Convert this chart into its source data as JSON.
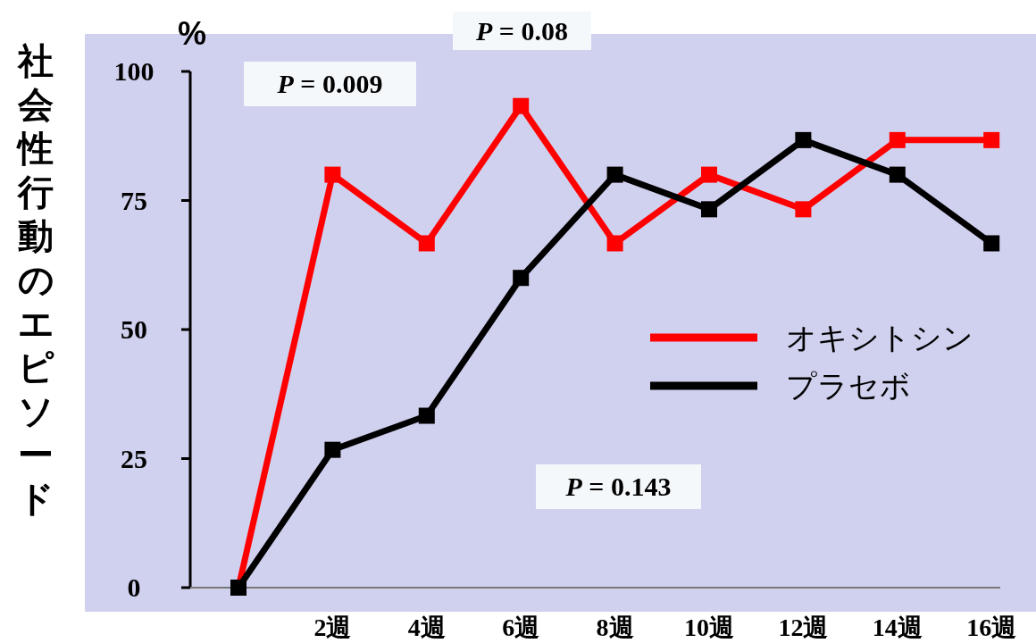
{
  "chart_data": {
    "type": "line",
    "ylabel": "社会性行動のエピソード",
    "categories": [
      null,
      "2週",
      "4週",
      "6週",
      "8週",
      "10週",
      "12週",
      "14週",
      "16週"
    ],
    "series": [
      {
        "name": "オキシトシン",
        "color": "#ff0000",
        "values": [
          0,
          80,
          66.7,
          93.3,
          66.7,
          80,
          73.3,
          86.7,
          86.7
        ]
      },
      {
        "name": "プラセボ",
        "color": "#000000",
        "values": [
          0,
          26.7,
          33.3,
          60,
          80,
          73.3,
          86.7,
          80,
          66.7
        ]
      }
    ],
    "ylim": [
      0,
      100
    ],
    "yticks": [
      0,
      25,
      50,
      75,
      100
    ],
    "marker": "square",
    "line_style": "solid",
    "legend": "right",
    "grid": false,
    "annotations": [
      "%",
      "P =  0.009",
      "P =  0.08",
      "P =  0.143"
    ]
  }
}
